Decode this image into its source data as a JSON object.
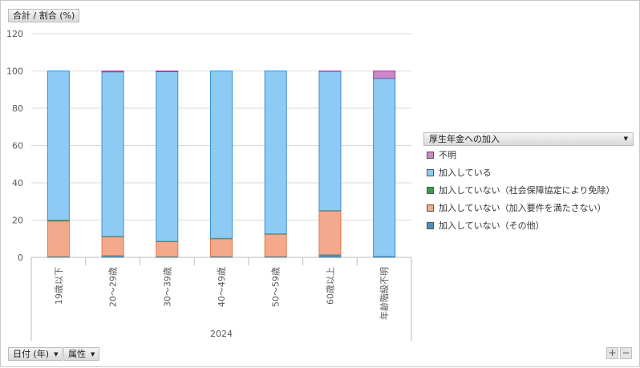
{
  "ui": {
    "measure_button": "合計 / 割合 (%)",
    "legend_title": "厚生年金への加入",
    "date_button": "日付 (年)",
    "attr_button": "属性",
    "zoom_in": "+",
    "zoom_out": "−"
  },
  "chart_data": {
    "type": "bar",
    "stacked": true,
    "group_label": "2024",
    "categories": [
      "19歳以下",
      "20～29歳",
      "30～39歳",
      "40～49歳",
      "50～59歳",
      "60歳以上",
      "年齢階級不明"
    ],
    "ylim": [
      0,
      120
    ],
    "yticks": [
      0,
      20,
      40,
      60,
      80,
      100,
      120
    ],
    "grid": true,
    "legend_position": "right",
    "series": [
      {
        "name": "加入していない（その他）",
        "color": "#4a90b8",
        "values": [
          0.5,
          1.0,
          0.5,
          0.5,
          0.5,
          1.5,
          0.5
        ]
      },
      {
        "name": "加入していない（加入要件を満たさない）",
        "color": "#f4a98c",
        "values": [
          19.0,
          10.0,
          8.0,
          9.5,
          12.0,
          23.5,
          0.0
        ]
      },
      {
        "name": "加入していない（社会保障協定により免除）",
        "color": "#3a9a4a",
        "values": [
          0.5,
          0.2,
          0.1,
          0.2,
          0.1,
          0.1,
          0.0
        ]
      },
      {
        "name": "加入している",
        "color": "#8ecbf4",
        "values": [
          80.0,
          88.3,
          91.0,
          89.8,
          87.4,
          74.7,
          95.5
        ]
      },
      {
        "name": "不明",
        "color": "#cc88c8",
        "values": [
          0.0,
          0.5,
          0.4,
          0.0,
          0.0,
          0.2,
          4.0
        ]
      }
    ],
    "legend_order": [
      "不明",
      "加入している",
      "加入していない（社会保障協定により免除）",
      "加入していない（加入要件を満たさない）",
      "加入していない（その他）"
    ]
  }
}
